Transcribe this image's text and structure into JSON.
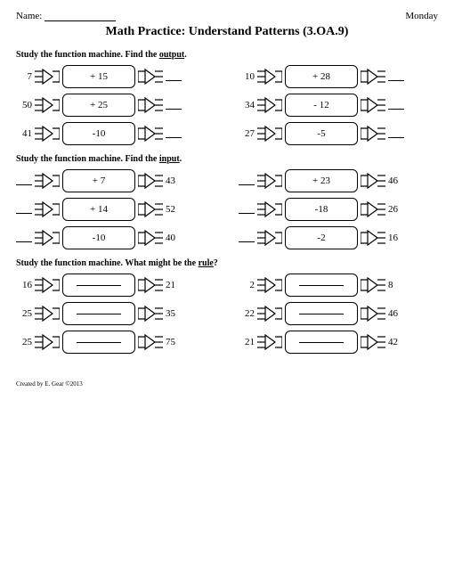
{
  "header": {
    "name_label": "Name:",
    "day": "Monday"
  },
  "title": "Math Practice: Understand Patterns (3.OA.9)",
  "section1": {
    "instruction_prefix": "Study the function machine. Find the ",
    "instruction_word": "output",
    "instruction_suffix": ".",
    "machines": [
      {
        "input": "7",
        "rule": "+ 15"
      },
      {
        "input": "10",
        "rule": "+ 28"
      },
      {
        "input": "50",
        "rule": "+ 25"
      },
      {
        "input": "34",
        "rule": "- 12"
      },
      {
        "input": "41",
        "rule": "-10"
      },
      {
        "input": "27",
        "rule": "-5"
      }
    ]
  },
  "section2": {
    "instruction_prefix": "Study the function machine. Find the ",
    "instruction_word": "input",
    "instruction_suffix": ".",
    "machines": [
      {
        "rule": "+ 7",
        "output": "43"
      },
      {
        "rule": "+ 23",
        "output": "46"
      },
      {
        "rule": "+ 14",
        "output": "52"
      },
      {
        "rule": "-18",
        "output": "26"
      },
      {
        "rule": "-10",
        "output": "40"
      },
      {
        "rule": "-2",
        "output": "16"
      }
    ]
  },
  "section3": {
    "instruction_prefix": "Study the function machine. What might be the ",
    "instruction_word": "rule",
    "instruction_suffix": "?",
    "machines": [
      {
        "input": "16",
        "output": "21"
      },
      {
        "input": "2",
        "output": "8"
      },
      {
        "input": "25",
        "output": "35"
      },
      {
        "input": "22",
        "output": "46"
      },
      {
        "input": "25",
        "output": "75"
      },
      {
        "input": "21",
        "output": "42"
      }
    ]
  },
  "footer": "Created by E. Gear ©2013"
}
